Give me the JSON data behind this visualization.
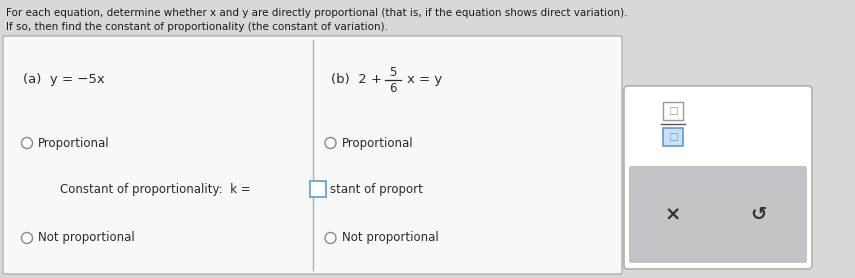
{
  "title_line1": "For each equation, determine whether x and y are directly proportional (that is, if the equation shows direct variation).",
  "title_line2": "If so, then find the constant of proportionality (the constant of variation).",
  "eq_a": "(a)  y = −5x",
  "eq_b_pre": "(b)  2 + ",
  "eq_b_frac_num": "5",
  "eq_b_frac_den": "6",
  "eq_b_post": "x = y",
  "radio_proportional": "Proportional",
  "radio_not_proportional": "Not proportional",
  "constant_text": "Constant of proportionality:  k =",
  "constant_suffix": "stant of proport",
  "bg_color": "#d8d8d8",
  "table_bg": "#f8f8f8",
  "table_border": "#b0b0b0",
  "side_box_bg": "#ffffff",
  "side_gray_bg": "#c4c4c8",
  "text_color": "#2a2a2a",
  "title_color": "#1a1a1a",
  "radio_color": "#888888",
  "input_border": "#5b9bd5",
  "input_fill": "#ffffff",
  "denom_border": "#5b9bd5",
  "denom_fill": "#cce0f5"
}
